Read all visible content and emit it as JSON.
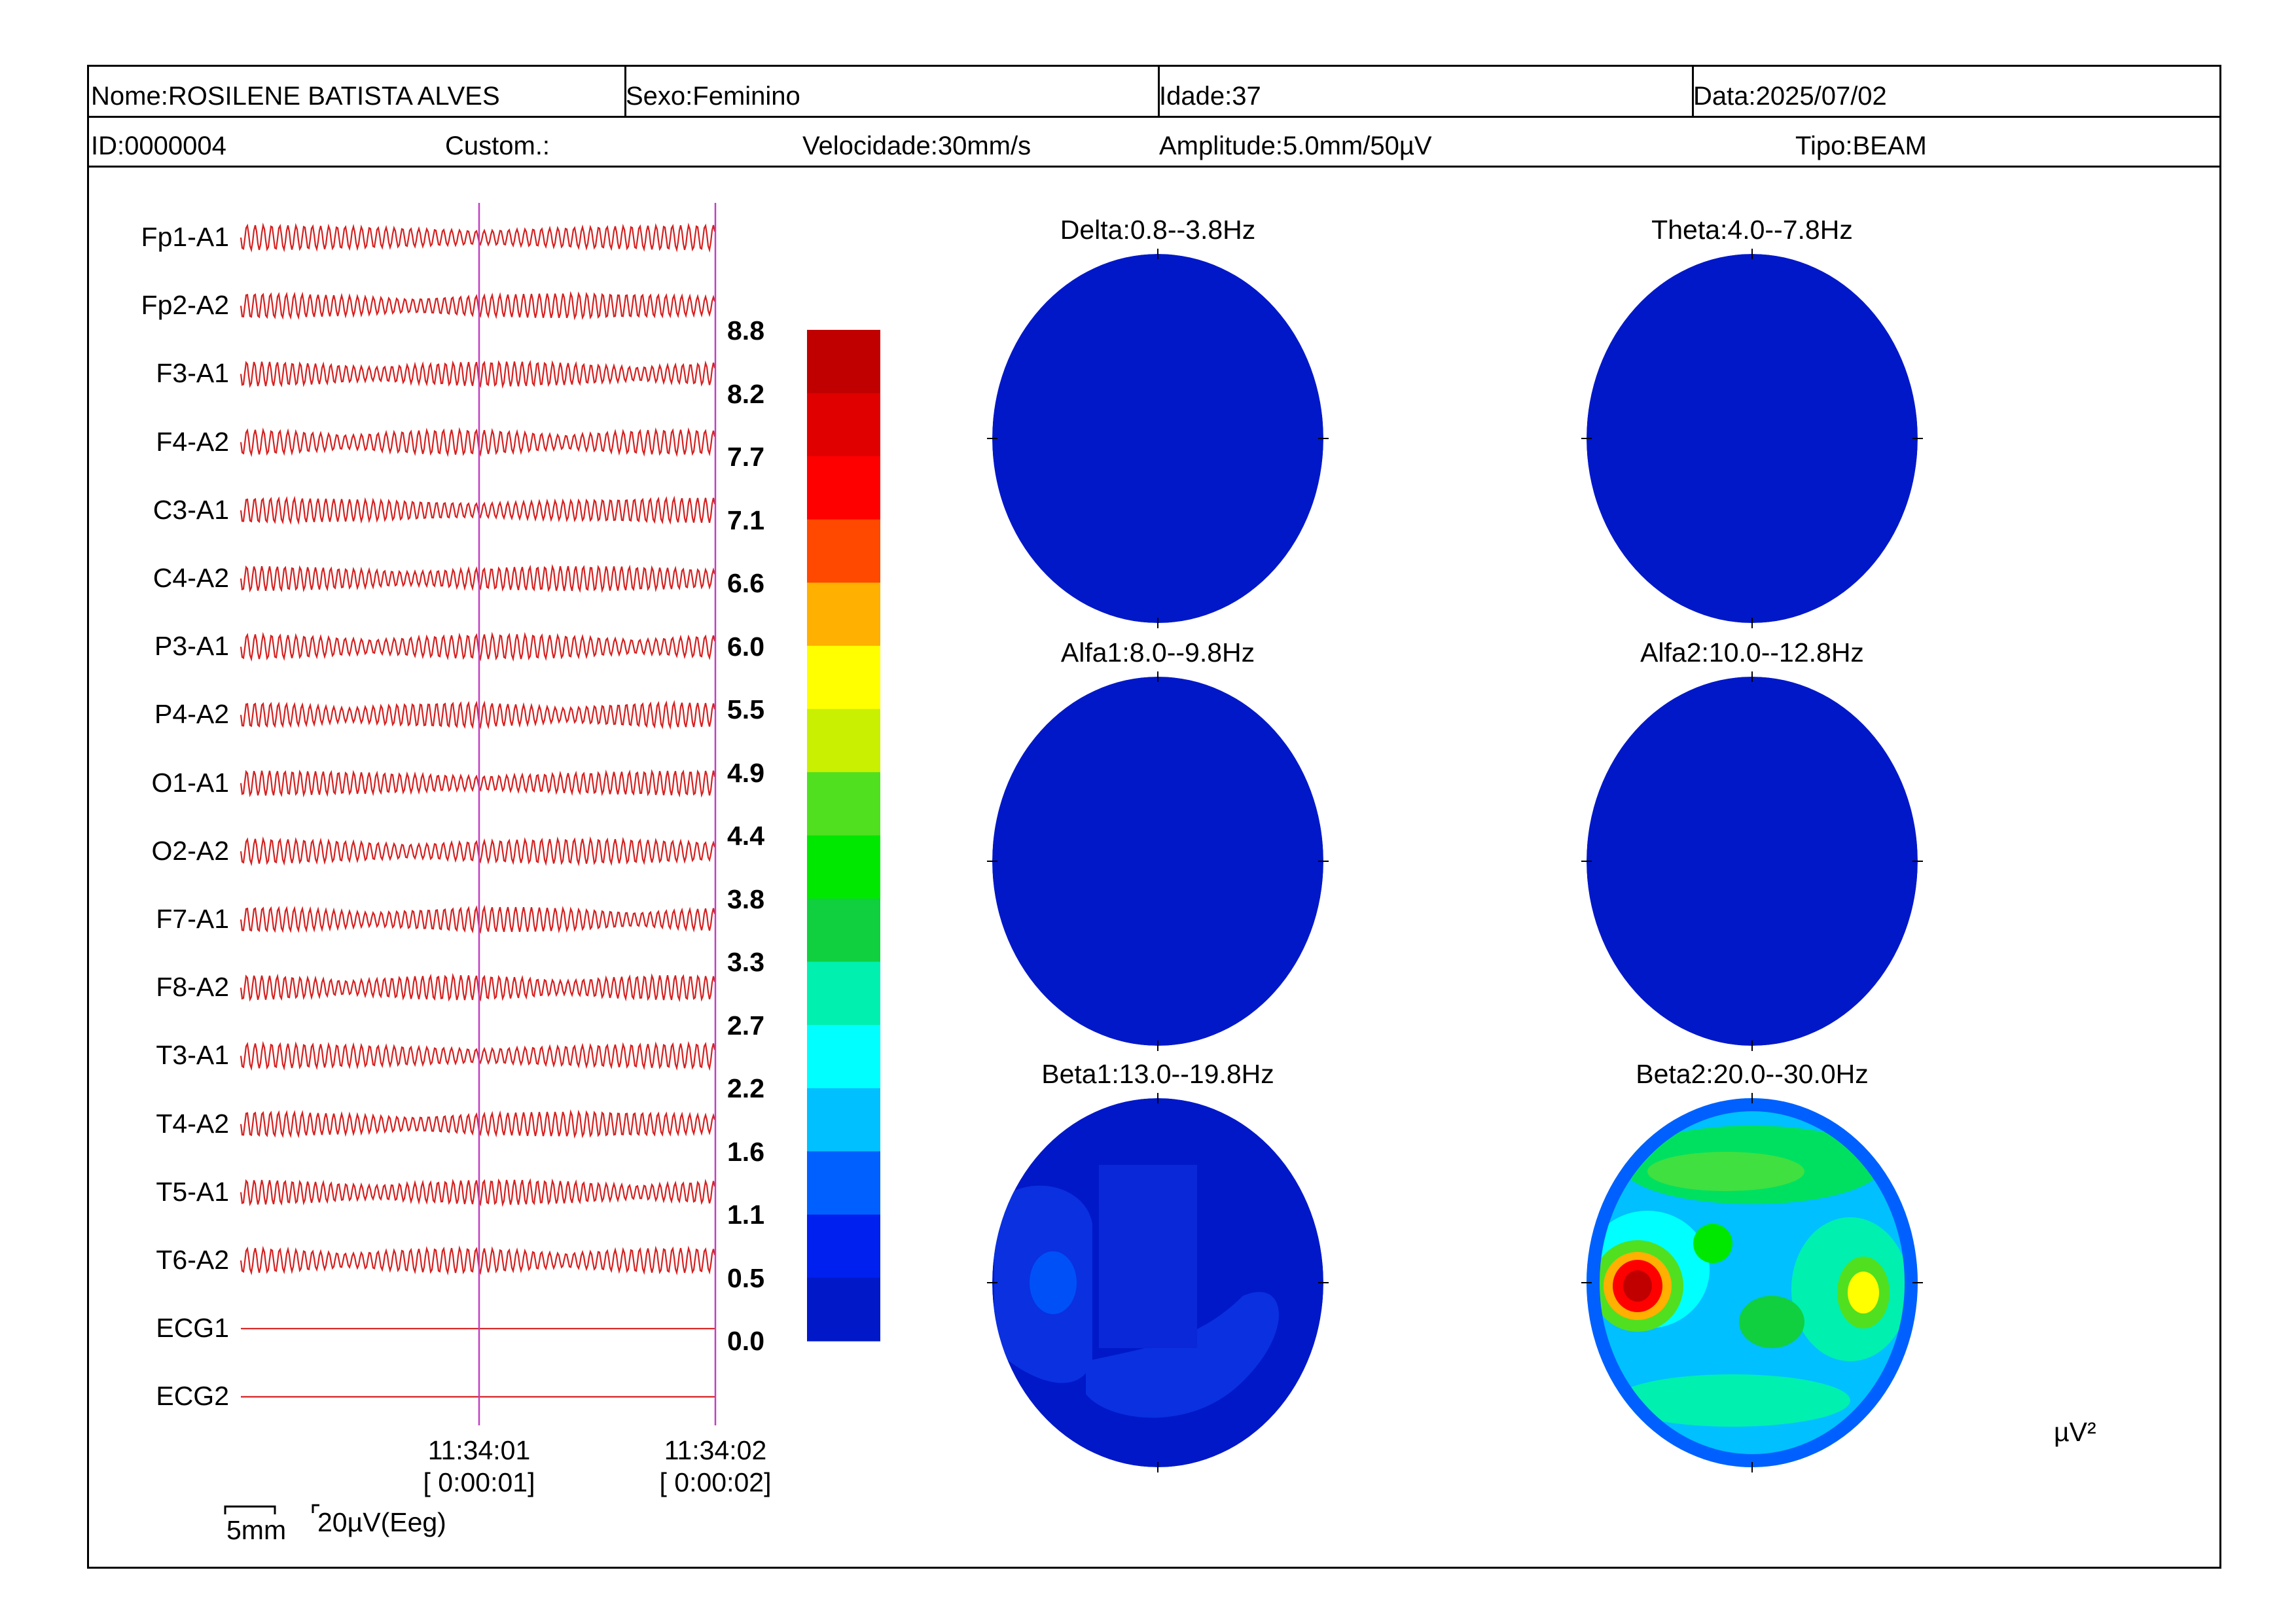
{
  "header": {
    "nome": "Nome:ROSILENE BATISTA ALVES",
    "sexo": "Sexo:Feminino",
    "idade": "Idade:37",
    "data": "Data:2025/07/02",
    "id": "ID:0000004",
    "custom": "Custom.:",
    "velocidade": "Velocidade:30mm/s",
    "amplitude": "Amplitude:5.0mm/50µV",
    "tipo": "Tipo:BEAM"
  },
  "channels": [
    "Fp1-A1",
    "Fp2-A2",
    "F3-A1",
    "F4-A2",
    "C3-A1",
    "C4-A2",
    "P3-A1",
    "P4-A2",
    "O1-A1",
    "O2-A2",
    "F7-A1",
    "F8-A2",
    "T3-A1",
    "T4-A2",
    "T5-A1",
    "T6-A2",
    "ECG1",
    "ECG2"
  ],
  "trace_color": "#d42020",
  "cursor_color": "#c040c0",
  "time_marks": [
    {
      "time": "11:34:01",
      "elapsed": "[ 0:00:01]"
    },
    {
      "time": "11:34:02",
      "elapsed": "[ 0:00:02]"
    }
  ],
  "calibration": {
    "time_scale": "5mm",
    "amp_scale": "20µV(Eeg)"
  },
  "color_scale": {
    "labels": [
      "8.8",
      "8.2",
      "7.7",
      "7.1",
      "6.6",
      "6.0",
      "5.5",
      "4.9",
      "4.4",
      "3.8",
      "3.3",
      "2.7",
      "2.2",
      "1.6",
      "1.1",
      "0.5",
      "0.0"
    ],
    "colors": [
      "#c00000",
      "#e00000",
      "#ff0000",
      "#ff4800",
      "#ffb000",
      "#ffff00",
      "#c8f000",
      "#50e020",
      "#00e800",
      "#10d040",
      "#00f0b0",
      "#00ffff",
      "#00c0ff",
      "#0060ff",
      "#0020f0",
      "#0018c8"
    ]
  },
  "maps": [
    {
      "title": "Delta:0.8--3.8Hz",
      "fill": "#0018c8"
    },
    {
      "title": "Theta:4.0--7.8Hz",
      "fill": "#0018c8"
    },
    {
      "title": "Alfa1:8.0--9.8Hz",
      "fill": "#0018c8"
    },
    {
      "title": "Alfa2:10.0--12.8Hz",
      "fill": "#0018c8"
    },
    {
      "title": "Beta1:13.0--19.8Hz",
      "fill": "#0018c8"
    },
    {
      "title": "Beta2:20.0--30.0Hz",
      "fill": "#00c0ff"
    }
  ],
  "unit": "µV²"
}
